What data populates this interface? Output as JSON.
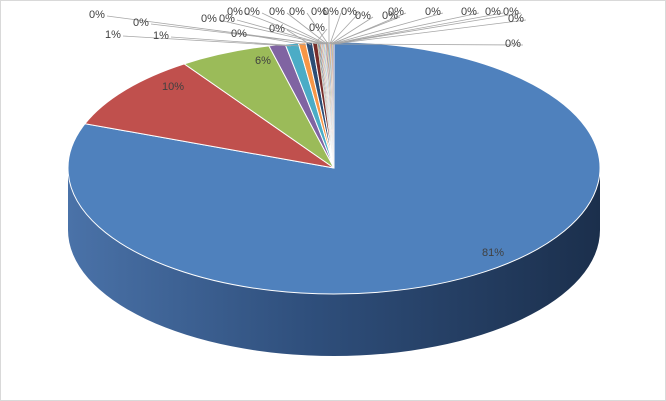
{
  "chart_data": {
    "type": "pie",
    "style": "3d",
    "legend": "none",
    "slices": [
      {
        "label": "81%",
        "value": 81.0,
        "color": "#4F81BD"
      },
      {
        "label": "10%",
        "value": 9.8,
        "color": "#C0504D"
      },
      {
        "label": "6%",
        "value": 5.6,
        "color": "#9BBB59"
      },
      {
        "label": "1%",
        "value": 1.0,
        "color": "#8064A2"
      },
      {
        "label": "1%",
        "value": 0.8,
        "color": "#4BACC6"
      },
      {
        "label": "0%",
        "value": 0.45,
        "color": "#F79646"
      },
      {
        "label": "0%",
        "value": 0.4,
        "color": "#2C4D75"
      },
      {
        "label": "0%",
        "value": 0.3,
        "color": "#772C2A"
      },
      {
        "label": "0%",
        "value": 0.05,
        "color": "#5F7530"
      },
      {
        "label": "0%",
        "value": 0.05,
        "color": "#4D3B62"
      },
      {
        "label": "0%",
        "value": 0.05,
        "color": "#276A7C"
      },
      {
        "label": "0%",
        "value": 0.05,
        "color": "#B65708"
      },
      {
        "label": "0%",
        "value": 0.05,
        "color": "#729ACA"
      },
      {
        "label": "0%",
        "value": 0.05,
        "color": "#CD7371"
      },
      {
        "label": "0%",
        "value": 0.05,
        "color": "#AFC97A"
      },
      {
        "label": "0%",
        "value": 0.05,
        "color": "#9983B5"
      },
      {
        "label": "0%",
        "value": 0.05,
        "color": "#6FBDD1"
      },
      {
        "label": "0%",
        "value": 0.05,
        "color": "#F9AB6B"
      },
      {
        "label": "0%",
        "value": 0.05,
        "color": "#3A679C"
      },
      {
        "label": "0%",
        "value": 0.05,
        "color": "#9F3B38"
      },
      {
        "label": "0%",
        "value": 0.05,
        "color": "#7F9C40"
      },
      {
        "label": "0%",
        "value": 0.05,
        "color": "#664F83"
      },
      {
        "label": "0%",
        "value": 0.05,
        "color": "#358DA5"
      },
      {
        "label": "0%",
        "value": 0.05,
        "color": "#F07404"
      },
      {
        "label": "0%",
        "value": 0.05,
        "color": "#4F81BD"
      },
      {
        "label": "0%",
        "value": 0.05,
        "color": "#C0504D"
      },
      {
        "label": "0%",
        "value": 0.05,
        "color": "#9BBB59"
      },
      {
        "label": "0%",
        "value": 0.05,
        "color": "#8064A2"
      }
    ]
  }
}
